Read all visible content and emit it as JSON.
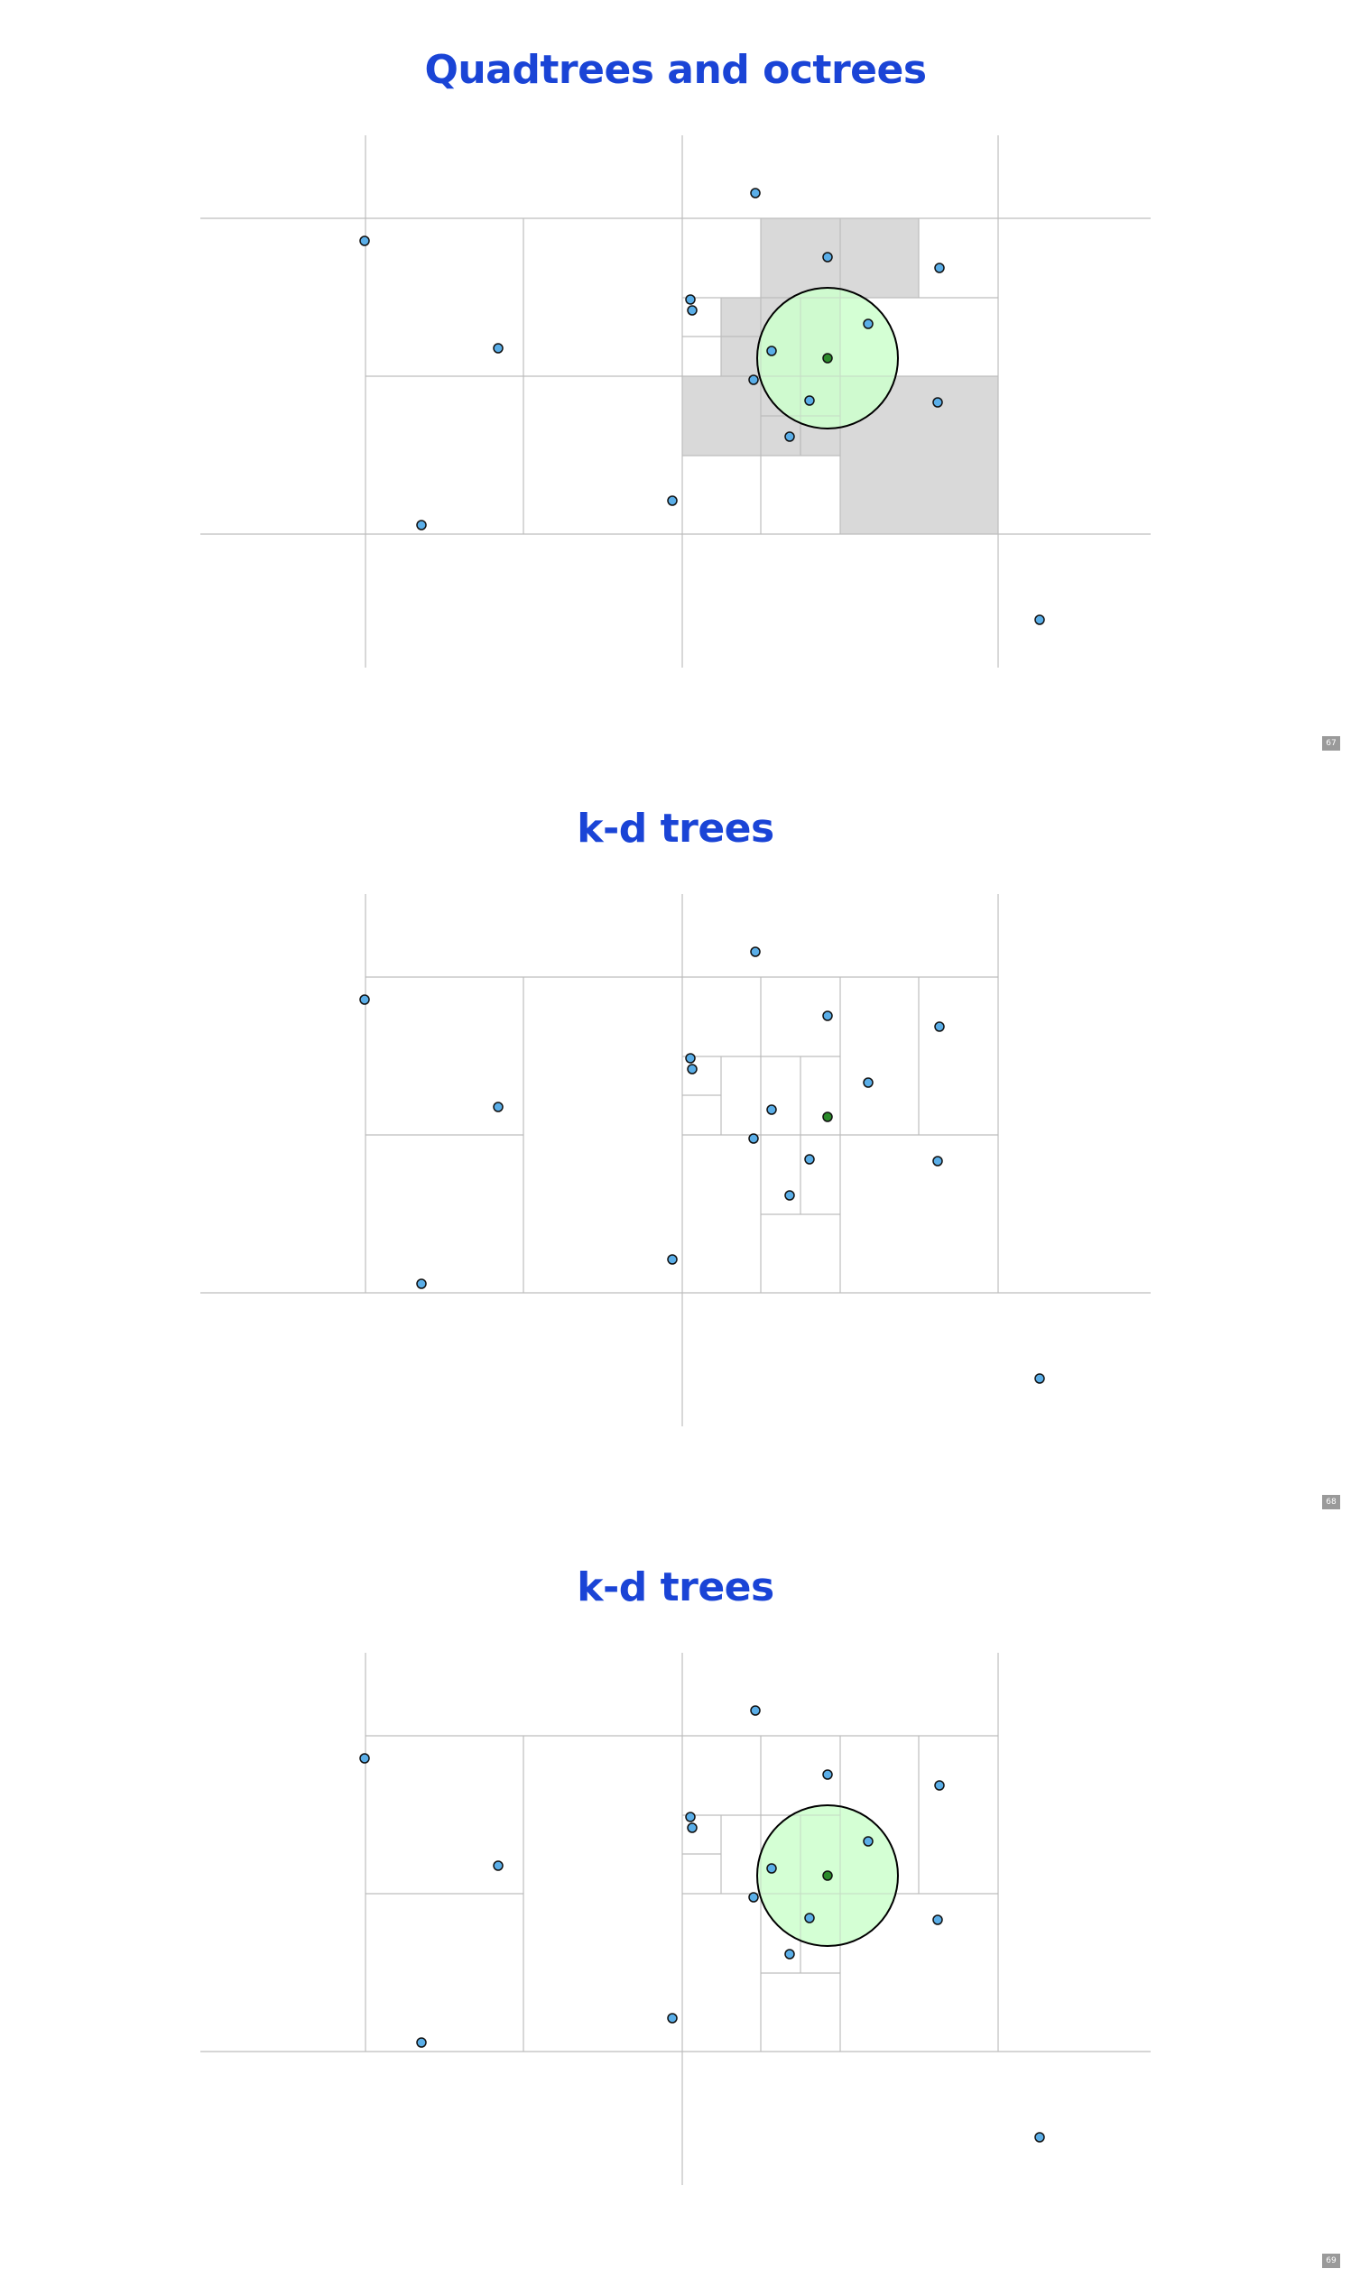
{
  "slides": [
    {
      "title": "Quadtrees and octrees",
      "page": "67",
      "partition": "quadtree",
      "shade_cells": true,
      "query_circle": true
    },
    {
      "title": "k-d trees",
      "page": "68",
      "partition": "kdtree",
      "shade_cells": false,
      "query_circle": false
    },
    {
      "title": "k-d trees",
      "page": "69",
      "partition": "kdtree",
      "shade_cells": false,
      "query_circle": true
    }
  ],
  "colors": {
    "title": "#1a44d6",
    "grid_line": "#bdbdbd",
    "shaded_cell": "#d9d9d9",
    "point_fill": "#5aaee8",
    "query_point": "#2a8a2a",
    "query_circle_fill": "#ccffcc"
  }
}
